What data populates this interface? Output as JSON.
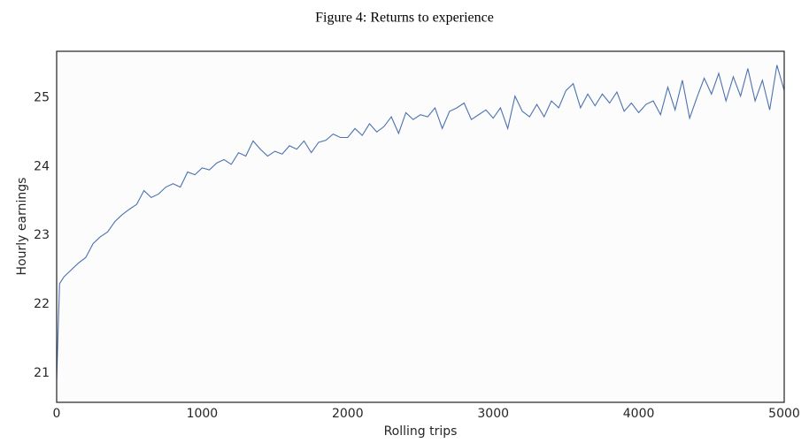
{
  "chart_data": {
    "type": "line",
    "title": "Figure 4: Returns to experience",
    "x_label": "Rolling trips",
    "y_label": "Hourly earnings",
    "x": [
      0,
      20,
      50,
      100,
      150,
      200,
      250,
      300,
      350,
      400,
      450,
      500,
      550,
      600,
      650,
      700,
      750,
      800,
      850,
      900,
      950,
      1000,
      1050,
      1100,
      1150,
      1200,
      1250,
      1300,
      1350,
      1400,
      1450,
      1500,
      1550,
      1600,
      1650,
      1700,
      1750,
      1800,
      1850,
      1900,
      1950,
      2000,
      2050,
      2100,
      2150,
      2200,
      2250,
      2300,
      2350,
      2400,
      2450,
      2500,
      2550,
      2600,
      2650,
      2700,
      2750,
      2800,
      2850,
      2900,
      2950,
      3000,
      3050,
      3100,
      3150,
      3200,
      3250,
      3300,
      3350,
      3400,
      3450,
      3500,
      3550,
      3600,
      3650,
      3700,
      3750,
      3800,
      3850,
      3900,
      3950,
      4000,
      4050,
      4100,
      4150,
      4200,
      4250,
      4300,
      4350,
      4400,
      4450,
      4500,
      4550,
      4600,
      4650,
      4700,
      4750,
      4800,
      4850,
      4900,
      4950,
      5000
    ],
    "series": [
      {
        "name": "Hourly earnings",
        "color": "#4c72b0",
        "values": [
          20.9,
          22.3,
          22.4,
          22.5,
          22.6,
          22.68,
          22.88,
          22.98,
          23.05,
          23.2,
          23.3,
          23.38,
          23.45,
          23.65,
          23.55,
          23.6,
          23.7,
          23.75,
          23.7,
          23.92,
          23.88,
          23.98,
          23.95,
          24.05,
          24.1,
          24.03,
          24.2,
          24.15,
          24.37,
          24.25,
          24.15,
          24.22,
          24.18,
          24.3,
          24.25,
          24.37,
          24.2,
          24.35,
          24.38,
          24.47,
          24.42,
          24.42,
          24.55,
          24.45,
          24.62,
          24.5,
          24.58,
          24.72,
          24.48,
          24.78,
          24.68,
          24.75,
          24.72,
          24.85,
          24.55,
          24.8,
          24.85,
          24.92,
          24.68,
          24.75,
          24.82,
          24.7,
          24.85,
          24.55,
          25.02,
          24.8,
          24.72,
          24.9,
          24.72,
          24.95,
          24.85,
          25.1,
          25.2,
          24.85,
          25.05,
          24.88,
          25.05,
          24.92,
          25.08,
          24.8,
          24.92,
          24.78,
          24.9,
          24.95,
          24.75,
          25.15,
          24.82,
          25.25,
          24.7,
          25.0,
          25.28,
          25.05,
          25.35,
          24.95,
          25.3,
          25.02,
          25.42,
          24.95,
          25.25,
          24.82,
          25.47,
          25.1
        ]
      }
    ],
    "xlim": [
      0,
      5000
    ],
    "xticks": [
      0,
      1000,
      2000,
      3000,
      4000,
      5000
    ],
    "ylim": [
      20.58,
      25.67
    ],
    "yticks": [
      21,
      22,
      23,
      24,
      25
    ]
  }
}
